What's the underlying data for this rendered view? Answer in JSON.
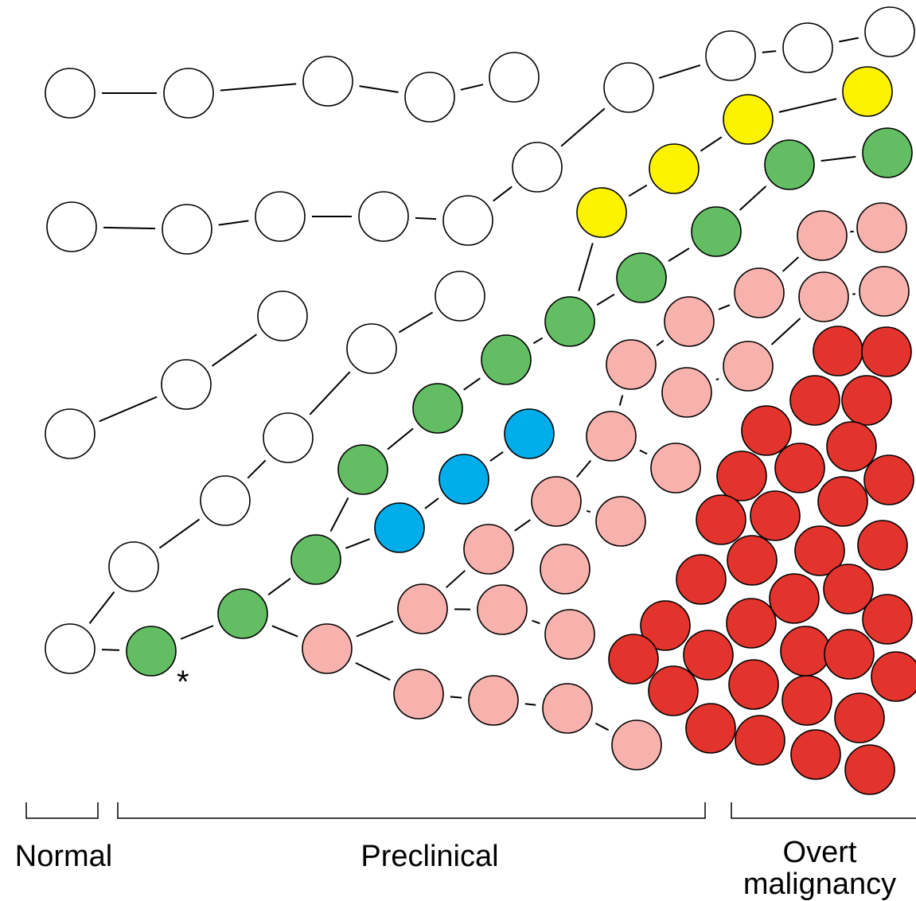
{
  "stage_labels": {
    "normal": "Normal",
    "preclinical": "Preclinical",
    "overt_line1": "Overt",
    "overt_line2": "malignancy"
  },
  "marker": "*",
  "colors": {
    "normal_cell": "#ffffff",
    "green_clone": "#62bd63",
    "yellow_clone": "#fdf300",
    "blue_clone": "#00adeb",
    "pink_clone": "#f8b2ad",
    "red_malignant": "#e3332d",
    "outline": "#000000"
  }
}
